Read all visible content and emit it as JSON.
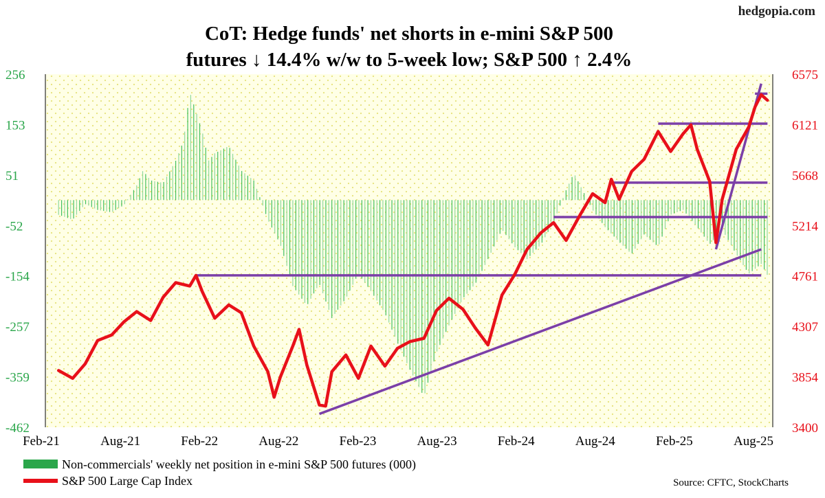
{
  "brand": "hedgopia.com",
  "chart_data": {
    "type": "bar+line",
    "title_lines": [
      "CoT: Hedge funds' net shorts in e-mini S&P 500",
      "futures ↓ 14.4% w/w to 5-week low; S&P 500 ↑ 2.4%"
    ],
    "x_start": "2021-02",
    "x_end": "2025-08",
    "x_ticks": [
      "Feb-21",
      "Aug-21",
      "Feb-22",
      "Aug-22",
      "Feb-23",
      "Aug-23",
      "Feb-24",
      "Aug-24",
      "Feb-25",
      "Aug-25"
    ],
    "left_axis": {
      "ticks": [
        "256",
        "153",
        "51",
        "-52",
        "-154",
        "-257",
        "-359",
        "-462"
      ],
      "min": -462,
      "max": 256,
      "color": "#2aa64a"
    },
    "right_axis": {
      "ticks": [
        "6575",
        "6121",
        "5668",
        "5214",
        "4761",
        "4307",
        "3854",
        "3400"
      ],
      "min": 3400,
      "max": 6575,
      "color": "#e8101a"
    },
    "legend": [
      {
        "label": "Non-commercials' weekly net position in e-mini S&P 500 futures (000)",
        "color": "#2aa64a"
      },
      {
        "label": "S&P 500 Large Cap Index",
        "color": "#e8101a"
      }
    ],
    "source": "Source: CFTC, StockCharts",
    "series": [
      {
        "name": "Non-commercials' weekly net position in e-mini S&P 500 futures (000)",
        "axis": "left",
        "points": [
          [
            2021.08,
            -30
          ],
          [
            2021.17,
            -40
          ],
          [
            2021.25,
            -8
          ],
          [
            2021.33,
            -20
          ],
          [
            2021.42,
            -25
          ],
          [
            2021.5,
            -10
          ],
          [
            2021.58,
            30
          ],
          [
            2021.62,
            60
          ],
          [
            2021.67,
            40
          ],
          [
            2021.75,
            35
          ],
          [
            2021.83,
            80
          ],
          [
            2021.88,
            120
          ],
          [
            2021.92,
            220
          ],
          [
            2021.96,
            180
          ],
          [
            2022.0,
            140
          ],
          [
            2022.04,
            80
          ],
          [
            2022.08,
            95
          ],
          [
            2022.17,
            110
          ],
          [
            2022.25,
            60
          ],
          [
            2022.33,
            40
          ],
          [
            2022.42,
            -40
          ],
          [
            2022.5,
            -90
          ],
          [
            2022.58,
            -175
          ],
          [
            2022.67,
            -215
          ],
          [
            2022.75,
            -170
          ],
          [
            2022.83,
            -240
          ],
          [
            2022.92,
            -200
          ],
          [
            2023.0,
            -150
          ],
          [
            2023.08,
            -185
          ],
          [
            2023.17,
            -230
          ],
          [
            2023.25,
            -290
          ],
          [
            2023.33,
            -345
          ],
          [
            2023.42,
            -400
          ],
          [
            2023.5,
            -310
          ],
          [
            2023.58,
            -255
          ],
          [
            2023.67,
            -200
          ],
          [
            2023.75,
            -170
          ],
          [
            2023.83,
            -120
          ],
          [
            2023.92,
            -60
          ],
          [
            2024.0,
            -95
          ],
          [
            2024.08,
            -120
          ],
          [
            2024.17,
            -90
          ],
          [
            2024.25,
            -45
          ],
          [
            2024.33,
            20
          ],
          [
            2024.38,
            55
          ],
          [
            2024.42,
            30
          ],
          [
            2024.5,
            -20
          ],
          [
            2024.58,
            -55
          ],
          [
            2024.67,
            -85
          ],
          [
            2024.75,
            -110
          ],
          [
            2024.83,
            -70
          ],
          [
            2024.92,
            -95
          ],
          [
            2025.0,
            -30
          ],
          [
            2025.08,
            -20
          ],
          [
            2025.17,
            -55
          ],
          [
            2025.25,
            -90
          ],
          [
            2025.33,
            -60
          ],
          [
            2025.42,
            -110
          ],
          [
            2025.5,
            -150
          ],
          [
            2025.58,
            -130
          ],
          [
            2025.62,
            -153
          ]
        ]
      },
      {
        "name": "S&P 500 Large Cap Index",
        "axis": "right",
        "points": [
          [
            2021.08,
            3910
          ],
          [
            2021.17,
            3840
          ],
          [
            2021.25,
            3970
          ],
          [
            2021.33,
            4180
          ],
          [
            2021.42,
            4230
          ],
          [
            2021.5,
            4350
          ],
          [
            2021.58,
            4440
          ],
          [
            2021.67,
            4360
          ],
          [
            2021.75,
            4570
          ],
          [
            2021.83,
            4700
          ],
          [
            2021.92,
            4670
          ],
          [
            2021.96,
            4766
          ],
          [
            2022.0,
            4620
          ],
          [
            2022.08,
            4380
          ],
          [
            2022.17,
            4500
          ],
          [
            2022.25,
            4430
          ],
          [
            2022.33,
            4130
          ],
          [
            2022.42,
            3900
          ],
          [
            2022.46,
            3670
          ],
          [
            2022.5,
            3850
          ],
          [
            2022.58,
            4130
          ],
          [
            2022.62,
            4280
          ],
          [
            2022.67,
            3960
          ],
          [
            2022.75,
            3600
          ],
          [
            2022.79,
            3590
          ],
          [
            2022.83,
            3900
          ],
          [
            2022.92,
            4050
          ],
          [
            2023.0,
            3840
          ],
          [
            2023.08,
            4130
          ],
          [
            2023.17,
            3950
          ],
          [
            2023.25,
            4110
          ],
          [
            2023.33,
            4170
          ],
          [
            2023.42,
            4200
          ],
          [
            2023.5,
            4450
          ],
          [
            2023.58,
            4560
          ],
          [
            2023.67,
            4460
          ],
          [
            2023.75,
            4290
          ],
          [
            2023.83,
            4140
          ],
          [
            2023.92,
            4590
          ],
          [
            2024.0,
            4770
          ],
          [
            2024.08,
            5000
          ],
          [
            2024.17,
            5150
          ],
          [
            2024.25,
            5240
          ],
          [
            2024.33,
            5080
          ],
          [
            2024.42,
            5310
          ],
          [
            2024.5,
            5500
          ],
          [
            2024.58,
            5420
          ],
          [
            2024.62,
            5630
          ],
          [
            2024.67,
            5450
          ],
          [
            2024.75,
            5700
          ],
          [
            2024.83,
            5810
          ],
          [
            2024.88,
            5950
          ],
          [
            2024.92,
            6060
          ],
          [
            2025.0,
            5880
          ],
          [
            2025.08,
            6040
          ],
          [
            2025.13,
            6120
          ],
          [
            2025.17,
            5900
          ],
          [
            2025.25,
            5610
          ],
          [
            2025.29,
            5060
          ],
          [
            2025.33,
            5450
          ],
          [
            2025.42,
            5900
          ],
          [
            2025.5,
            6100
          ],
          [
            2025.54,
            6280
          ],
          [
            2025.58,
            6390
          ],
          [
            2025.62,
            6340
          ]
        ]
      }
    ],
    "guide_lines": [
      {
        "axis": "right",
        "from": [
          2021.96,
          4766
        ],
        "to": [
          2025.58,
          4766
        ]
      },
      {
        "axis": "right",
        "from": [
          2024.25,
          5290
        ],
        "to": [
          2025.62,
          5290
        ]
      },
      {
        "axis": "right",
        "from": [
          2024.62,
          5600
        ],
        "to": [
          2025.62,
          5600
        ]
      },
      {
        "axis": "right",
        "from": [
          2024.92,
          6130
        ],
        "to": [
          2025.62,
          6130
        ]
      },
      {
        "axis": "right",
        "from": [
          2025.54,
          6400
        ],
        "to": [
          2025.62,
          6400
        ]
      },
      {
        "axis": "right",
        "from": [
          2022.75,
          3520
        ],
        "to": [
          2025.58,
          5000
        ]
      },
      {
        "axis": "right",
        "from": [
          2025.29,
          5000
        ],
        "to": [
          2025.58,
          6490
        ]
      }
    ]
  }
}
